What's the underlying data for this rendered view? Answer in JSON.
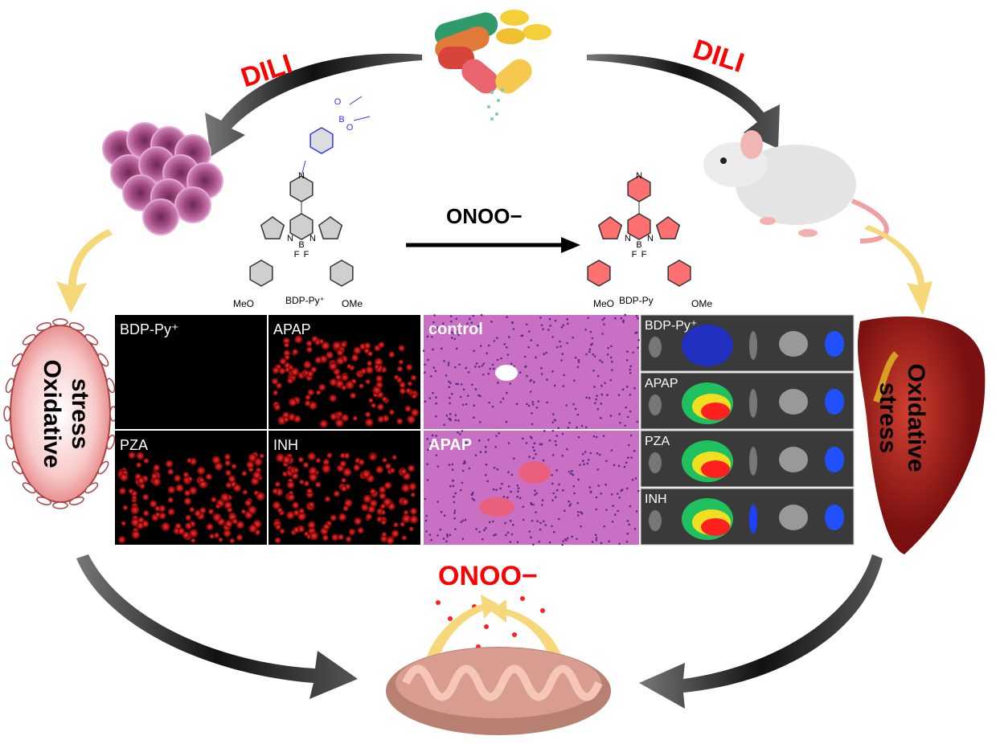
{
  "labels": {
    "dili_left": "DILI",
    "dili_right": "DILI",
    "reaction_top": "ONOO−",
    "onoo_bottom": "ONOO−",
    "oxidative_stress_left": [
      "stress",
      "Oxidative"
    ],
    "oxidative_stress_right": [
      "Oxidative",
      "stress"
    ]
  },
  "molecules": {
    "probe": {
      "name": "BDP-Py⁺",
      "substituent_left": "MeO",
      "substituent_right": "OMe",
      "atoms": [
        "N",
        "N",
        "B",
        "F",
        "F",
        "N",
        "B",
        "O",
        "O"
      ]
    },
    "product": {
      "name": "BDP-Py",
      "substituent_left": "MeO",
      "substituent_right": "OMe",
      "atoms": [
        "N",
        "N",
        "B",
        "F",
        "F",
        "N"
      ]
    }
  },
  "fluorescence_panels": [
    "BDP-Py⁺",
    "APAP",
    "PZA",
    "INH"
  ],
  "histology_panels": [
    "control",
    "APAP"
  ],
  "imaging_panels": [
    "BDP-Py⁺",
    "APAP",
    "PZA",
    "INH"
  ],
  "colors": {
    "dili": "#ff0000",
    "onoo": "#ff0000",
    "probe_group": "#3333ff",
    "product": "#ff2020",
    "cell": "#b8558f",
    "liver": "#a82020",
    "mitochondria": "#c88c80",
    "arrow_yellow": "#f6d77a",
    "arrow_dark": "#222222"
  }
}
